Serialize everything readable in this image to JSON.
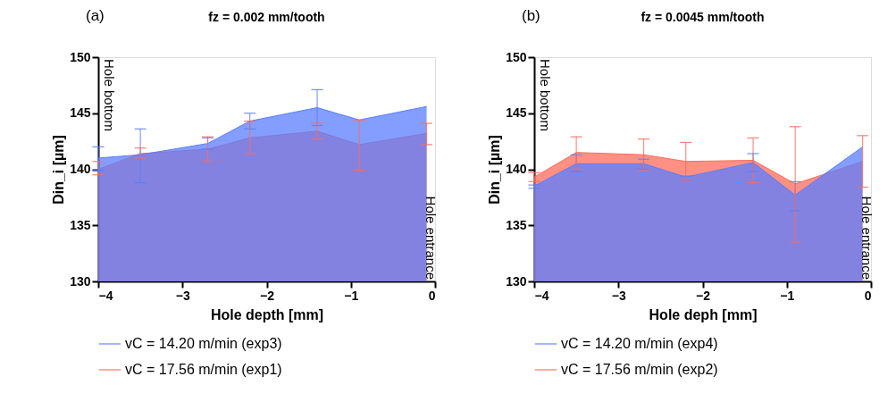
{
  "chart_data": [
    {
      "type": "area",
      "title": "fz = 0.002 mm/tooth",
      "xlabel": "Hole depth [mm]",
      "ylabel": "Din_i [µm]",
      "annotations": [
        "(a)",
        "Hole bottom",
        "Hole entrance"
      ],
      "x": [
        -4,
        -3.5,
        -2.7,
        -2.2,
        -1.4,
        -0.9,
        -0.1
      ],
      "series": [
        {
          "name": "vC = 14.20 m/min (exp3)",
          "color": "#5a7dff",
          "values": [
            141.0,
            141.3,
            142.3,
            144.3,
            145.5,
            144.4,
            145.6
          ],
          "errors": [
            [
              139.9,
              142.0
            ],
            [
              138.8,
              143.6
            ],
            [
              141.8,
              142.8
            ],
            [
              143.6,
              145.0
            ],
            [
              143.9,
              147.1
            ],
            null,
            null
          ]
        },
        {
          "name": "vC = 17.56 m/min (exp1)",
          "color": "#ff6b5a",
          "values": [
            140.0,
            141.4,
            141.8,
            142.8,
            143.4,
            142.2,
            143.2
          ],
          "errors": [
            [
              139.5,
              140.7
            ],
            [
              141.0,
              141.9
            ],
            [
              140.7,
              142.9
            ],
            [
              141.4,
              144.3
            ],
            [
              142.7,
              144.1
            ],
            [
              139.9,
              144.4
            ],
            [
              142.2,
              144.1
            ]
          ]
        }
      ],
      "xlim": [
        -4,
        0
      ],
      "xticks": [
        -4,
        -3,
        -2,
        -1,
        0
      ],
      "ylim": [
        130,
        150
      ],
      "yticks": [
        130,
        135,
        140,
        145,
        150
      ],
      "grid": false,
      "legend": "bottom"
    },
    {
      "type": "area",
      "title": "fz = 0.0045 mm/tooth",
      "xlabel": "Hole deph [mm]",
      "ylabel": "Din_i [µm]",
      "annotations": [
        "(b)",
        "Hole bottom",
        "Hole entrance"
      ],
      "x": [
        -4,
        -3.5,
        -2.7,
        -2.2,
        -1.4,
        -0.9,
        -0.1
      ],
      "series": [
        {
          "name": "vC = 14.20 m/min (exp4)",
          "color": "#5a7dff",
          "values": [
            138.5,
            140.5,
            140.5,
            139.3,
            140.6,
            137.7,
            142.0
          ],
          "errors": [
            [
              138.3,
              138.6
            ],
            [
              139.8,
              141.3
            ],
            [
              140.0,
              140.9
            ],
            [
              139.0,
              139.4
            ],
            [
              139.8,
              141.4
            ],
            [
              136.3,
              138.9
            ],
            null
          ]
        },
        {
          "name": "vC = 17.56 m/min (exp2)",
          "color": "#ff6b5a",
          "values": [
            139.3,
            141.5,
            141.3,
            140.7,
            140.8,
            138.7,
            140.7
          ],
          "errors": [
            [
              138.9,
              139.7
            ],
            [
              140.0,
              142.9
            ],
            [
              139.9,
              142.7
            ],
            [
              139.0,
              142.4
            ],
            [
              138.8,
              142.8
            ],
            [
              133.5,
              143.8
            ],
            [
              138.4,
              143.0
            ]
          ]
        }
      ],
      "xlim": [
        -4,
        0
      ],
      "xticks": [
        -4,
        -3,
        -2,
        -1,
        0
      ],
      "ylim": [
        130,
        150
      ],
      "yticks": [
        130,
        135,
        140,
        145,
        150
      ],
      "grid": false,
      "legend": "bottom"
    }
  ]
}
